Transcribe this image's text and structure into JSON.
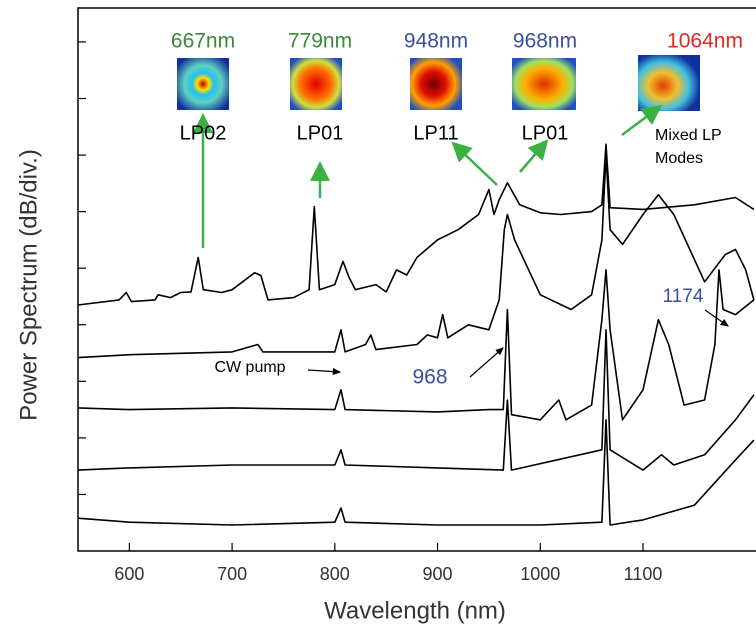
{
  "chart_data": {
    "type": "line",
    "xlabel": "Wavelength (nm)",
    "ylabel": "Power Spectrum (dB/div.)",
    "xlim": [
      550,
      1210
    ],
    "xticks": [
      600,
      700,
      800,
      900,
      1000,
      1100
    ],
    "ylim": [
      0,
      9.6
    ],
    "yticks": [
      1,
      2,
      3,
      4,
      5,
      6,
      7,
      8,
      9
    ],
    "series": [
      {
        "color": "#000000",
        "x": [
          550,
          590,
          597,
          602,
          625,
          628,
          640,
          650,
          660,
          667,
          672,
          690,
          700,
          722,
          728,
          735,
          760,
          775,
          780,
          785,
          800,
          808,
          814,
          820,
          840,
          850,
          860,
          870,
          880,
          900,
          920,
          940,
          950,
          955,
          960,
          968,
          980,
          1000,
          1020,
          1050,
          1060,
          1064,
          1068,
          1100,
          1150,
          1190,
          1208
        ],
        "values": [
          4.35,
          4.44,
          4.57,
          4.41,
          4.44,
          4.53,
          4.48,
          4.57,
          4.58,
          5.19,
          4.62,
          4.57,
          4.62,
          4.92,
          4.87,
          4.44,
          4.48,
          4.62,
          6.09,
          4.62,
          4.71,
          5.12,
          4.83,
          4.62,
          4.71,
          4.58,
          4.97,
          4.88,
          5.19,
          5.5,
          5.68,
          5.95,
          6.39,
          5.95,
          6.21,
          6.51,
          6.12,
          5.98,
          5.95,
          6.0,
          6.12,
          7.19,
          6.07,
          6.04,
          6.12,
          6.25,
          6.04
        ]
      },
      {
        "color": "#000000",
        "x": [
          550,
          600,
          700,
          725,
          730,
          800,
          806,
          810,
          830,
          835,
          840,
          880,
          890,
          900,
          905,
          910,
          930,
          950,
          960,
          965,
          968,
          975,
          1000,
          1030,
          1050,
          1060,
          1064,
          1068,
          1080,
          1100,
          1115,
          1130,
          1160,
          1180,
          1190,
          1200,
          1208
        ],
        "values": [
          3.42,
          3.47,
          3.52,
          3.65,
          3.52,
          3.52,
          3.91,
          3.52,
          3.65,
          3.82,
          3.56,
          3.65,
          3.82,
          3.77,
          4.18,
          3.77,
          4.0,
          3.91,
          4.44,
          5.68,
          5.95,
          5.5,
          4.53,
          4.27,
          4.53,
          5.5,
          7.01,
          5.68,
          5.42,
          5.95,
          6.3,
          5.95,
          4.76,
          5.24,
          5.33,
          4.97,
          4.44
        ]
      },
      {
        "color": "#000000",
        "x": [
          550,
          600,
          700,
          800,
          806,
          810,
          900,
          950,
          964,
          968,
          972,
          1000,
          1018,
          1025,
          1050,
          1060,
          1064,
          1068,
          1080,
          1100,
          1115,
          1125,
          1140,
          1160,
          1170,
          1174,
          1178,
          1190,
          1208
        ],
        "values": [
          2.53,
          2.5,
          2.53,
          2.5,
          2.85,
          2.5,
          2.46,
          2.5,
          2.5,
          4.27,
          2.41,
          2.32,
          2.67,
          2.32,
          2.58,
          4.09,
          4.97,
          3.91,
          2.32,
          2.85,
          4.09,
          3.65,
          2.58,
          2.67,
          3.65,
          4.97,
          4.27,
          4.18,
          4.44
        ]
      },
      {
        "color": "#000000",
        "x": [
          550,
          600,
          700,
          800,
          806,
          810,
          900,
          964,
          968,
          972,
          1060,
          1064,
          1068,
          1100,
          1118,
          1130,
          1160,
          1190,
          1208
        ],
        "values": [
          1.43,
          1.47,
          1.52,
          1.52,
          1.79,
          1.52,
          1.47,
          1.43,
          2.67,
          1.43,
          1.79,
          3.91,
          1.79,
          1.43,
          1.7,
          1.52,
          1.7,
          2.32,
          2.76
        ]
      },
      {
        "color": "#000000",
        "x": [
          550,
          600,
          700,
          800,
          806,
          810,
          900,
          1000,
          1060,
          1064,
          1068,
          1100,
          1150,
          1190,
          1208
        ],
        "values": [
          0.58,
          0.51,
          0.46,
          0.51,
          0.76,
          0.51,
          0.46,
          0.46,
          0.51,
          2.32,
          0.46,
          0.55,
          0.81,
          1.61,
          1.96
        ]
      }
    ],
    "annotations": [
      {
        "text": "667nm",
        "color": "#3a8a3a"
      },
      {
        "text": "779nm",
        "color": "#3a8a3a"
      },
      {
        "text": "948nm",
        "color": "#3b4fa0"
      },
      {
        "text": "968nm",
        "color": "#3b4fa0"
      },
      {
        "text": "1064nm",
        "color": "#e0281e"
      },
      {
        "text": "LP02",
        "color": "#000000"
      },
      {
        "text": "LP01",
        "color": "#000000"
      },
      {
        "text": "LP11",
        "color": "#000000"
      },
      {
        "text": "LP01",
        "color": "#000000"
      },
      {
        "text": "Mixed LP",
        "color": "#000000"
      },
      {
        "text": "Modes",
        "color": "#000000"
      },
      {
        "text": "CW pump",
        "color": "#000000"
      },
      {
        "text": "968",
        "color": "#3b4fa0"
      },
      {
        "text": "1174",
        "color": "#3b4fa0"
      }
    ]
  }
}
